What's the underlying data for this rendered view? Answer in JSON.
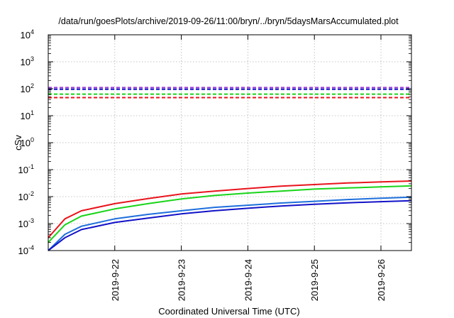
{
  "chart_data": {
    "type": "line",
    "title": "/data/run/goesPlots/archive/2019-09-26/11:00/bryn/../bryn/5daysMarsAccumulated.plot",
    "xlabel": "Coordinated Universal Time (UTC)",
    "ylabel": "cSv",
    "y_scale": "log",
    "ylim": [
      0.0001,
      10000
    ],
    "xlim": [
      "2019-09-21 00:00",
      "2019-09-26 11:00"
    ],
    "x_ticks": [
      "2019-9-22",
      "2019-9-23",
      "2019-9-24",
      "2019-9-25",
      "2019-9-26"
    ],
    "y_ticks": [
      {
        "base": "10",
        "exp": "-4"
      },
      {
        "base": "10",
        "exp": "-3"
      },
      {
        "base": "10",
        "exp": "-2"
      },
      {
        "base": "10",
        "exp": "-1"
      },
      {
        "base": "10",
        "exp": "0"
      },
      {
        "base": "10",
        "exp": "1"
      },
      {
        "base": "10",
        "exp": "2"
      },
      {
        "base": "10",
        "exp": "3"
      },
      {
        "base": "10",
        "exp": "4"
      }
    ],
    "grid": true,
    "colors": {
      "red": "#e8141d",
      "green": "#19d419",
      "lightblue": "#1e6fdc",
      "darkblue": "#1212c8",
      "purple": "#9a3bd6"
    },
    "series": [
      {
        "color": "red",
        "style": "solid",
        "x": [
          "2019-09-21 00:00",
          "2019-09-21 06:00",
          "2019-09-21 12:00",
          "2019-09-22 00:00",
          "2019-09-22 12:00",
          "2019-09-23 00:00",
          "2019-09-23 12:00",
          "2019-09-24 00:00",
          "2019-09-24 12:00",
          "2019-09-25 00:00",
          "2019-09-25 12:00",
          "2019-09-26 00:00",
          "2019-09-26 11:00"
        ],
        "y": [
          0.0003,
          0.0015,
          0.003,
          0.0055,
          0.0085,
          0.0125,
          0.016,
          0.02,
          0.0245,
          0.028,
          0.032,
          0.035,
          0.038
        ]
      },
      {
        "color": "green",
        "style": "solid",
        "x": [
          "2019-09-21 00:00",
          "2019-09-21 06:00",
          "2019-09-21 12:00",
          "2019-09-22 00:00",
          "2019-09-22 12:00",
          "2019-09-23 00:00",
          "2019-09-23 12:00",
          "2019-09-24 00:00",
          "2019-09-24 12:00",
          "2019-09-25 00:00",
          "2019-09-25 12:00",
          "2019-09-26 00:00",
          "2019-09-26 11:00"
        ],
        "y": [
          0.0002,
          0.0009,
          0.0019,
          0.0035,
          0.0055,
          0.0082,
          0.011,
          0.0135,
          0.016,
          0.019,
          0.021,
          0.023,
          0.025
        ]
      },
      {
        "color": "lightblue",
        "style": "solid",
        "x": [
          "2019-09-21 00:00",
          "2019-09-21 06:00",
          "2019-09-21 12:00",
          "2019-09-22 00:00",
          "2019-09-22 12:00",
          "2019-09-23 00:00",
          "2019-09-23 12:00",
          "2019-09-24 00:00",
          "2019-09-24 12:00",
          "2019-09-25 00:00",
          "2019-09-25 12:00",
          "2019-09-26 00:00",
          "2019-09-26 11:00"
        ],
        "y": [
          0.0001,
          0.0004,
          0.0008,
          0.0015,
          0.0022,
          0.003,
          0.004,
          0.0048,
          0.0058,
          0.0067,
          0.0078,
          0.0087,
          0.0095
        ]
      },
      {
        "color": "darkblue",
        "style": "solid",
        "x": [
          "2019-09-21 00:00",
          "2019-09-21 06:00",
          "2019-09-21 12:00",
          "2019-09-22 00:00",
          "2019-09-22 12:00",
          "2019-09-23 00:00",
          "2019-09-23 12:00",
          "2019-09-24 00:00",
          "2019-09-24 12:00",
          "2019-09-25 00:00",
          "2019-09-25 12:00",
          "2019-09-26 00:00",
          "2019-09-26 11:00"
        ],
        "y": [
          0.0001,
          0.0003,
          0.0006,
          0.0011,
          0.0016,
          0.0023,
          0.003,
          0.0037,
          0.0045,
          0.0052,
          0.0059,
          0.0065,
          0.0071
        ]
      },
      {
        "color": "purple",
        "style": "dashed",
        "x": [
          "2019-09-21 00:00",
          "2019-09-26 11:00"
        ],
        "y": [
          110,
          110
        ]
      },
      {
        "color": "darkblue",
        "style": "dashed",
        "x": [
          "2019-09-21 00:00",
          "2019-09-26 11:00"
        ],
        "y": [
          95,
          95
        ]
      },
      {
        "color": "green",
        "style": "dashed",
        "x": [
          "2019-09-21 00:00",
          "2019-09-26 11:00"
        ],
        "y": [
          63,
          63
        ]
      },
      {
        "color": "red",
        "style": "dashed",
        "x": [
          "2019-09-21 00:00",
          "2019-09-26 11:00"
        ],
        "y": [
          47,
          47
        ]
      }
    ]
  }
}
